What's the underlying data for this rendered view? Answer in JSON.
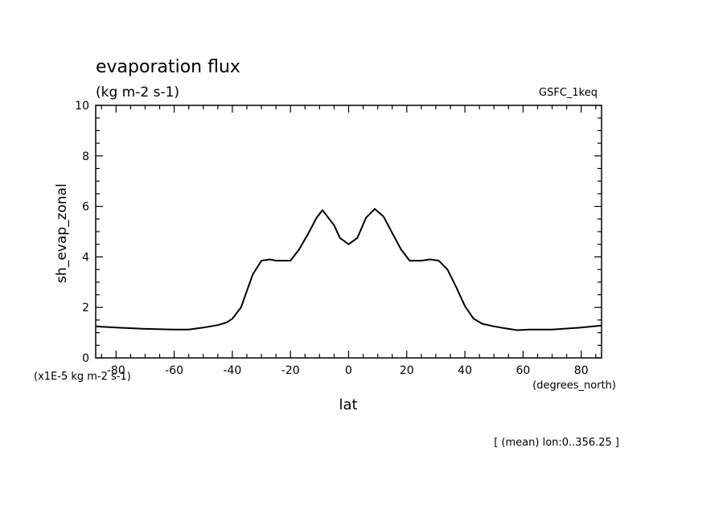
{
  "chart_data": {
    "type": "line",
    "title": "evaporation flux",
    "subtitle": "(kg m-2 s-1)",
    "dataset": "GSFC_1keq",
    "xlabel": "lat",
    "x_units": "(degrees_north)",
    "ylabel": "sh_evap_zonal",
    "y_units": "(x1E-5 kg m-2 s-1)",
    "footnote": "[ (mean) lon:0..356.25 ]",
    "xlim": [
      -87,
      87
    ],
    "ylim": [
      0,
      10
    ],
    "x_ticks": [
      -80,
      -60,
      -40,
      -20,
      0,
      20,
      40,
      60,
      80
    ],
    "x_tick_labels": [
      "-80",
      "-60",
      "-40",
      "-20",
      "0",
      "20",
      "40",
      "60",
      "80"
    ],
    "y_ticks": [
      0,
      2,
      4,
      6,
      8,
      10
    ],
    "y_tick_labels": [
      "0",
      "2",
      "4",
      "6",
      "8",
      "10"
    ],
    "grid": false,
    "series": [
      {
        "color": "#000000",
        "x": [
          -87.5,
          -80,
          -70,
          -60,
          -55,
          -50,
          -45,
          -42,
          -40,
          -37,
          -33,
          -30,
          -27,
          -25,
          -22,
          -20,
          -17,
          -14,
          -11,
          -9,
          -7,
          -5,
          -3,
          0,
          3,
          6,
          9,
          12,
          15,
          18,
          21,
          25,
          28,
          31,
          34,
          37,
          40,
          43,
          46,
          50,
          55,
          58,
          62,
          70,
          80,
          87.5
        ],
        "y": [
          1.25,
          1.2,
          1.15,
          1.12,
          1.12,
          1.2,
          1.3,
          1.4,
          1.55,
          2.0,
          3.3,
          3.85,
          3.9,
          3.85,
          3.85,
          3.85,
          4.3,
          4.9,
          5.55,
          5.85,
          5.55,
          5.25,
          4.75,
          4.5,
          4.75,
          5.55,
          5.9,
          5.6,
          4.95,
          4.3,
          3.85,
          3.85,
          3.9,
          3.85,
          3.5,
          2.8,
          2.05,
          1.55,
          1.35,
          1.25,
          1.15,
          1.1,
          1.12,
          1.12,
          1.2,
          1.28
        ]
      }
    ]
  }
}
